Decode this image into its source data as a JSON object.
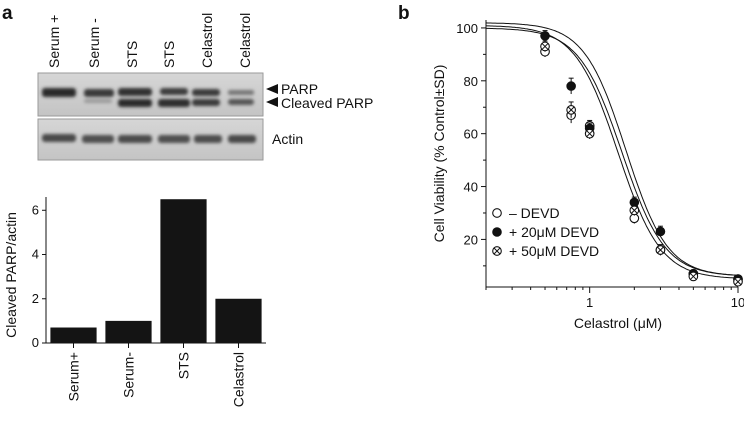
{
  "figure": {
    "panel_a_letter": "a",
    "panel_b_letter": "b"
  },
  "western_blot": {
    "lanes": [
      "Serum +",
      "Serum -",
      "STS",
      "STS",
      "Celastrol",
      "Celastrol"
    ],
    "band_labels": {
      "parp": "PARP",
      "cleaved_parp": "Cleaved PARP",
      "actin": "Actin"
    }
  },
  "chart_data": [
    {
      "type": "bar",
      "title": "",
      "xlabel": "",
      "ylabel": "Cleaved PARP/actin",
      "categories": [
        "Serum+",
        "Serum-",
        "STS",
        "Celastrol"
      ],
      "values": [
        0.7,
        1.0,
        6.5,
        2.0
      ],
      "ylim": [
        0,
        6.6
      ],
      "yticks": [
        0,
        2,
        4,
        6
      ],
      "grid": false,
      "bar_color": "#141414"
    },
    {
      "type": "scatter",
      "title": "",
      "xlabel": "Celastrol (μM)",
      "ylabel": "Cell Viability (% Control±SD)",
      "xscale": "log",
      "xlim": [
        0.2,
        10
      ],
      "ylim": [
        2,
        103
      ],
      "xticks": [
        1,
        10
      ],
      "yticks": [
        20,
        40,
        60,
        80,
        100
      ],
      "legend_position": "bottom-left",
      "grid": false,
      "series": [
        {
          "name": "– DEVD",
          "marker": "open-circle",
          "points": [
            [
              0.5,
              91
            ],
            [
              0.75,
              67
            ],
            [
              1,
              63
            ],
            [
              2,
              28
            ],
            [
              3,
              16
            ],
            [
              5,
              7
            ],
            [
              10,
              5
            ]
          ],
          "errors": [
            2,
            3,
            2,
            2,
            2,
            1,
            1
          ]
        },
        {
          "name": "+ 20μM DEVD",
          "marker": "filled-circle",
          "points": [
            [
              0.5,
              97
            ],
            [
              0.75,
              78
            ],
            [
              1,
              62
            ],
            [
              2,
              34
            ],
            [
              3,
              23
            ],
            [
              5,
              7
            ],
            [
              10,
              5
            ]
          ],
          "errors": [
            2,
            3,
            2,
            2,
            2,
            1,
            1
          ]
        },
        {
          "name": "+ 50μM DEVD",
          "marker": "crossed-circle",
          "points": [
            [
              0.5,
              93
            ],
            [
              0.75,
              69
            ],
            [
              1,
              60
            ],
            [
              2,
              31
            ],
            [
              3,
              16
            ],
            [
              5,
              6
            ],
            [
              10,
              4
            ]
          ],
          "errors": [
            2,
            3,
            2,
            2,
            2,
            1,
            1
          ]
        }
      ]
    }
  ]
}
